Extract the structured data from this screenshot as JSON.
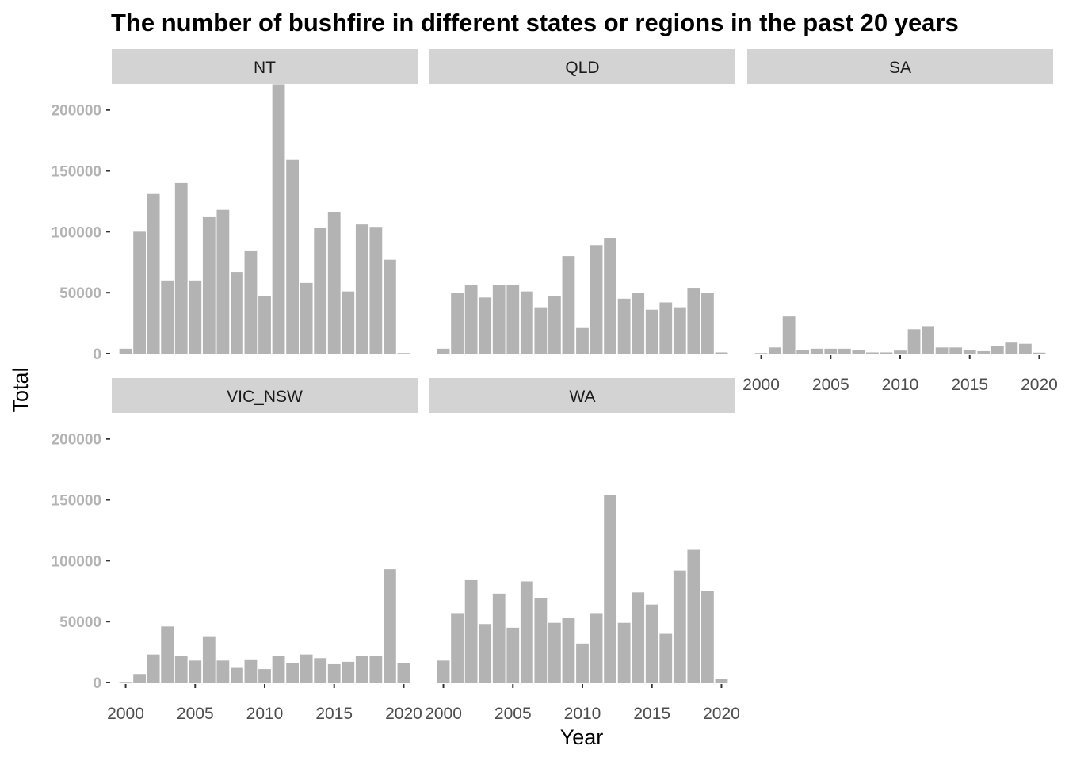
{
  "chart_data": {
    "type": "bar",
    "title": "The number of bushfire in different states or regions in the past 20 years",
    "xlabel": "Year",
    "ylabel": "Total",
    "ylim": [
      0,
      220000
    ],
    "y_ticks": [
      0,
      50000,
      100000,
      150000,
      200000
    ],
    "y_tick_labels": [
      "0",
      "50000",
      "100000",
      "150000",
      "200000"
    ],
    "xlim": [
      1999,
      2021
    ],
    "x_ticks": [
      2000,
      2005,
      2010,
      2015,
      2020
    ],
    "x_tick_labels": [
      "2000",
      "2005",
      "2010",
      "2015",
      "2020"
    ],
    "grid": false,
    "bar_color": "#b3b3b3",
    "strip_color": "#d3d3d3",
    "years": [
      2000,
      2001,
      2002,
      2003,
      2004,
      2005,
      2006,
      2007,
      2008,
      2009,
      2010,
      2011,
      2012,
      2013,
      2014,
      2015,
      2016,
      2017,
      2018,
      2019,
      2020
    ],
    "panels": [
      {
        "name": "NT",
        "values": [
          4000,
          100000,
          131000,
          60000,
          140000,
          60000,
          112000,
          118000,
          67000,
          84000,
          47000,
          221000,
          159000,
          58000,
          103000,
          116000,
          51000,
          106000,
          104000,
          77000,
          500
        ]
      },
      {
        "name": "QLD",
        "values": [
          4000,
          50000,
          56000,
          46000,
          56000,
          56000,
          51000,
          38000,
          47000,
          80000,
          21000,
          89000,
          95000,
          45000,
          50000,
          36000,
          42000,
          38000,
          54000,
          50000,
          1000
        ]
      },
      {
        "name": "SA",
        "values": [
          500,
          5000,
          30500,
          3000,
          4000,
          4000,
          4000,
          3000,
          1000,
          1000,
          2500,
          20000,
          22500,
          5000,
          5000,
          3000,
          2000,
          6000,
          9000,
          8000,
          800
        ]
      },
      {
        "name": "VIC_NSW",
        "values": [
          500,
          7000,
          23000,
          46000,
          22000,
          18000,
          38000,
          18000,
          12000,
          19000,
          11000,
          22000,
          16000,
          23000,
          20000,
          15000,
          17000,
          22000,
          22000,
          93000,
          16000
        ]
      },
      {
        "name": "WA",
        "values": [
          18000,
          57000,
          84000,
          48000,
          73000,
          45000,
          83000,
          69000,
          49000,
          53000,
          32000,
          57000,
          154000,
          49000,
          74000,
          64000,
          40000,
          92000,
          109000,
          75000,
          3000
        ]
      }
    ]
  }
}
